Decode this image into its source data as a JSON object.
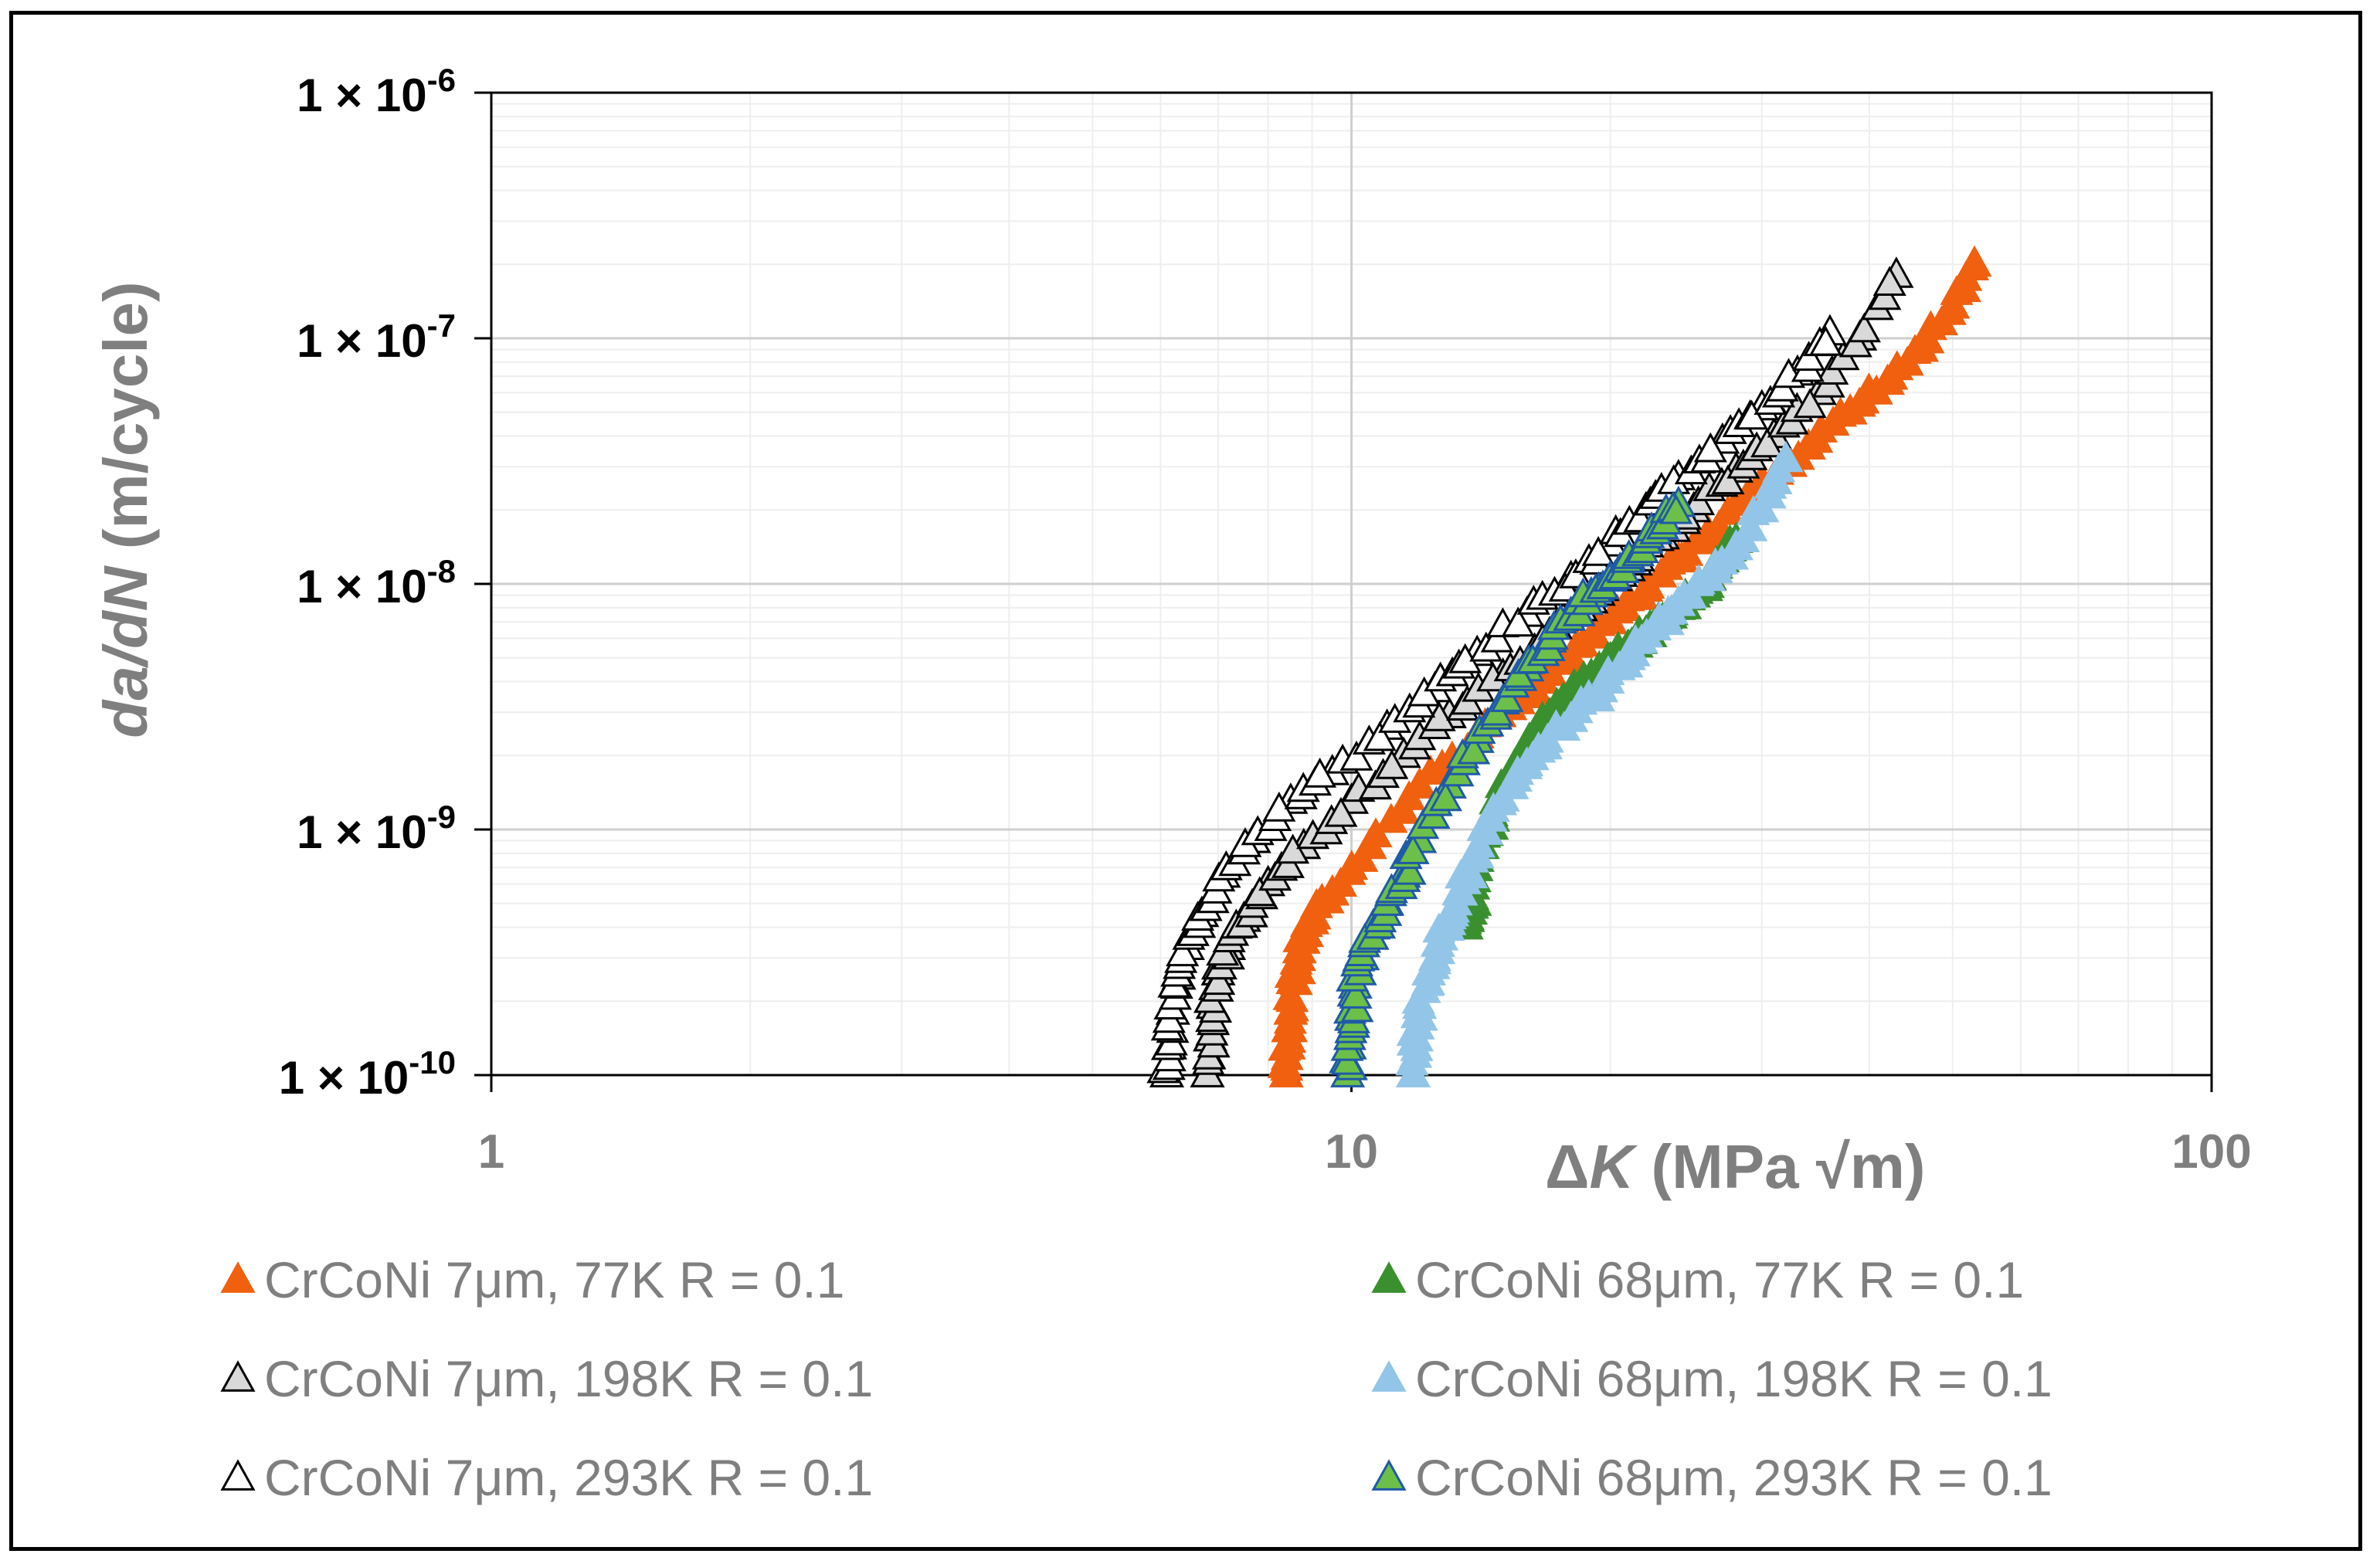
{
  "chart_data": {
    "type": "scatter",
    "x_scale": "log",
    "y_scale": "log",
    "xlim": [
      1,
      100
    ],
    "ylim": [
      1e-10,
      1e-06
    ],
    "grid": true,
    "legend_position": "bottom",
    "x_ticks": [
      {
        "value": 1,
        "label": "1"
      },
      {
        "value": 10,
        "label": "10"
      },
      {
        "value": 100,
        "label": "100"
      }
    ],
    "y_ticks": [
      {
        "value": 1e-06,
        "mant": "1 × 10",
        "exp": "-6"
      },
      {
        "value": 1e-07,
        "mant": "1 × 10",
        "exp": "-7"
      },
      {
        "value": 1e-08,
        "mant": "1 × 10",
        "exp": "-8"
      },
      {
        "value": 1e-09,
        "mant": "1 × 10",
        "exp": "-9"
      },
      {
        "value": 1e-10,
        "mant": "1 × 10",
        "exp": "-10"
      }
    ],
    "xlabel": {
      "delta": "Δ",
      "var": "K",
      "unit": " (MPa √m)"
    },
    "ylabel": {
      "var": "da/dN",
      "unit": "  (m/cycle)"
    },
    "series": [
      {
        "name": "CrCoNi 7μm, 77K R = 0.1",
        "marker_fill": "#f0600f",
        "marker_stroke": "#f0600f",
        "x": [
          8.4,
          8.45,
          8.5,
          8.55,
          8.7,
          9.0,
          9.5,
          10.5,
          12.0,
          14.0,
          16.0,
          18.0,
          20.0,
          22.0,
          24.0,
          26.0,
          30.0,
          34.0,
          38.0,
          42.0,
          46.0,
          50.0,
          53.0
        ],
        "y": [
          1e-10,
          1.3e-10,
          1.8e-10,
          2.4e-10,
          3.2e-10,
          4.2e-10,
          5.5e-10,
          8.5e-10,
          1.5e-09,
          2.4e-09,
          3.5e-09,
          5e-09,
          7e-09,
          9.5e-09,
          1.25e-08,
          1.6e-08,
          2.6e-08,
          3.6e-08,
          5e-08,
          6.6e-08,
          9e-08,
          1.35e-07,
          2e-07
        ]
      },
      {
        "name": "CrCoNi 7μm, 198K R = 0.1",
        "marker_fill": "#d9d9d9",
        "marker_stroke": "#000000",
        "x": [
          6.8,
          6.85,
          6.9,
          7.0,
          7.2,
          7.5,
          8.0,
          8.8,
          10.0,
          11.5,
          13.0,
          15.0,
          17.0,
          19.0,
          21.0,
          23.0,
          25.0,
          28.0,
          31.0,
          35.0,
          39.0,
          43.0
        ],
        "y": [
          1e-10,
          1.4e-10,
          1.9e-10,
          2.6e-10,
          3.3e-10,
          4.3e-10,
          6e-10,
          8.5e-10,
          1.3e-09,
          2e-09,
          2.9e-09,
          4.2e-09,
          6.2e-09,
          8.5e-09,
          1.15e-08,
          1.55e-08,
          2e-08,
          2.9e-08,
          4e-08,
          6e-08,
          1e-07,
          1.8e-07
        ]
      },
      {
        "name": "CrCoNi 7μm, 293K R = 0.1",
        "marker_fill": "#ffffff",
        "marker_stroke": "#000000",
        "x": [
          6.1,
          6.15,
          6.2,
          6.3,
          6.45,
          6.7,
          7.1,
          7.7,
          8.5,
          9.5,
          11.0,
          12.5,
          14.0,
          16.0,
          18.0,
          20.0,
          22.0,
          24.0,
          27.0,
          30.0,
          33.0,
          36.0
        ],
        "y": [
          1e-10,
          1.3e-10,
          1.8e-10,
          2.5e-10,
          3.3e-10,
          4.5e-10,
          6.5e-10,
          9e-10,
          1.3e-09,
          1.7e-09,
          2.6e-09,
          3.7e-09,
          5.2e-09,
          7.5e-09,
          1.05e-08,
          1.45e-08,
          2e-08,
          2.7e-08,
          3.8e-08,
          5.2e-08,
          7.2e-08,
          1.05e-07
        ]
      },
      {
        "name": "CrCoNi 68μm, 77K R = 0.1",
        "marker_fill": "#3a8f2e",
        "marker_stroke": "#3a8f2e",
        "x": [
          13.6,
          13.7,
          13.8,
          14.2,
          14.6,
          15.2,
          16.0,
          17.0,
          18.0,
          19.0,
          20.0,
          21.0,
          22.0,
          23.0,
          24.0,
          25.0,
          26.0,
          27.0,
          28.0
        ],
        "y": [
          4e-10,
          4.6e-10,
          5.3e-10,
          8.5e-10,
          1.1e-09,
          1.6e-09,
          2.2e-09,
          2.9e-09,
          3.6e-09,
          4.2e-09,
          4.9e-09,
          5.5e-09,
          6.3e-09,
          7.1e-09,
          8e-09,
          9e-09,
          1.05e-08,
          1.25e-08,
          1.5e-08
        ]
      },
      {
        "name": "CrCoNi 68μm, 198K R = 0.1",
        "marker_fill": "#92c5e8",
        "marker_stroke": "#92c5e8",
        "x": [
          11.8,
          11.9,
          12.0,
          12.3,
          12.6,
          13.0,
          13.4,
          13.8,
          14.5,
          15.5,
          16.5,
          18.0,
          19.5,
          21.0,
          22.5,
          24.0,
          26.0,
          28.0,
          30.0,
          32.0
        ],
        "y": [
          1e-10,
          1.4e-10,
          1.9e-10,
          2.6e-10,
          3.4e-10,
          4.4e-10,
          5.5e-10,
          7.5e-10,
          1.1e-09,
          1.6e-09,
          2.1e-09,
          2.8e-09,
          3.7e-09,
          5e-09,
          6.6e-09,
          8.3e-09,
          1.05e-08,
          1.4e-08,
          2e-08,
          3.2e-08
        ]
      },
      {
        "name": "CrCoNi 68μm, 293K R = 0.1",
        "marker_fill": "#6cc04a",
        "marker_stroke": "#1f5aa6",
        "x": [
          9.9,
          9.95,
          10.0,
          10.1,
          10.3,
          10.6,
          11.0,
          11.5,
          12.0,
          13.0,
          14.0,
          15.0,
          16.0,
          17.0,
          18.0,
          19.0,
          20.0,
          21.0,
          22.0,
          23.0,
          24.0
        ],
        "y": [
          1e-10,
          1.3e-10,
          1.7e-10,
          2.3e-10,
          3e-10,
          4e-10,
          5e-10,
          6.5e-10,
          9e-10,
          1.5e-09,
          2.3e-09,
          3.3e-09,
          4.5e-09,
          5.9e-09,
          7.5e-09,
          9e-09,
          1.05e-08,
          1.25e-08,
          1.5e-08,
          1.8e-08,
          2.1e-08
        ]
      }
    ]
  }
}
